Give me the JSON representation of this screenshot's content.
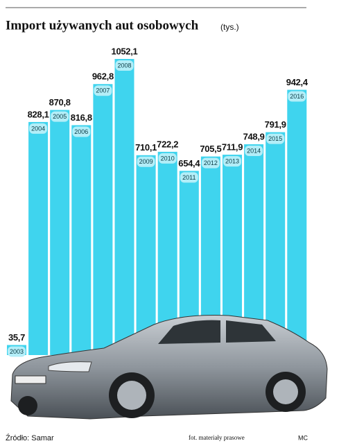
{
  "chart_data": {
    "type": "bar",
    "title": "Import używanych aut osobowych",
    "unit": "(tys.)",
    "categories": [
      "2003",
      "2004",
      "2005",
      "2006",
      "2007",
      "2008",
      "2009",
      "2010",
      "2011",
      "2012",
      "2013",
      "2014",
      "2015",
      "2016"
    ],
    "values": [
      35.7,
      828.1,
      870.8,
      816.8,
      962.8,
      1052.1,
      710.1,
      722.2,
      654.4,
      705.5,
      711.9,
      748.9,
      791.9,
      942.4
    ],
    "value_labels": [
      "35,7",
      "828,1",
      "870,8",
      "816,8",
      "962,8",
      "1052,1",
      "710,1",
      "722,2",
      "654,4",
      "705,5",
      "711,9",
      "748,9",
      "791,9",
      "942,4"
    ],
    "color": "#3fd4ee",
    "source": "Źródło: Samar",
    "photo_credit": "fot. materiały prasowe",
    "author": "MC"
  }
}
